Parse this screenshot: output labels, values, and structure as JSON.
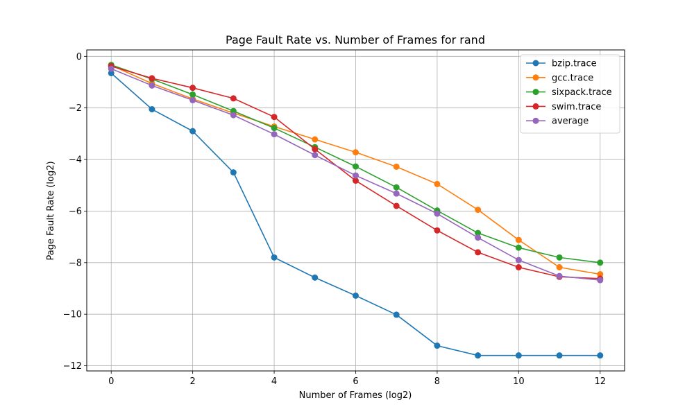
{
  "chart_data": {
    "type": "line",
    "title": "Page Fault Rate vs. Number of Frames for rand",
    "xlabel": "Number of Frames (log2)",
    "ylabel": "Page Fault Rate (log2)",
    "xlim": [
      -0.6,
      12.6
    ],
    "ylim": [
      -12.2,
      0.25
    ],
    "xticks": [
      0,
      2,
      4,
      6,
      8,
      10,
      12
    ],
    "yticks": [
      0,
      -2,
      -4,
      -6,
      -8,
      -10,
      -12
    ],
    "xtick_labels": [
      "0",
      "2",
      "4",
      "6",
      "8",
      "10",
      "12"
    ],
    "ytick_labels": [
      "0",
      "−2",
      "−4",
      "−6",
      "−8",
      "−10",
      "−12"
    ],
    "grid": true,
    "legend_position": "top-right",
    "x": [
      0,
      1,
      2,
      3,
      4,
      5,
      6,
      7,
      8,
      9,
      10,
      11,
      12
    ],
    "series": [
      {
        "name": "bzip.trace",
        "color": "#1f77b4",
        "values": [
          -0.65,
          -2.05,
          -2.9,
          -4.5,
          -7.8,
          -8.58,
          -9.28,
          -10.02,
          -11.22,
          -11.6,
          -11.6,
          -11.6,
          -11.6
        ]
      },
      {
        "name": "gcc.trace",
        "color": "#ff7f0e",
        "values": [
          -0.35,
          -1.05,
          -1.65,
          -2.2,
          -2.72,
          -3.22,
          -3.72,
          -4.28,
          -4.95,
          -5.95,
          -7.12,
          -8.18,
          -8.45
        ]
      },
      {
        "name": "sixpack.trace",
        "color": "#2ca02c",
        "values": [
          -0.33,
          -0.88,
          -1.48,
          -2.12,
          -2.78,
          -3.52,
          -4.27,
          -5.08,
          -5.98,
          -6.85,
          -7.42,
          -7.8,
          -8.0
        ]
      },
      {
        "name": "swim.trace",
        "color": "#d62728",
        "values": [
          -0.38,
          -0.85,
          -1.22,
          -1.63,
          -2.35,
          -3.6,
          -4.82,
          -5.8,
          -6.75,
          -7.6,
          -8.18,
          -8.55,
          -8.62
        ]
      },
      {
        "name": "average",
        "color": "#9467bd",
        "values": [
          -0.48,
          -1.13,
          -1.7,
          -2.28,
          -3.02,
          -3.83,
          -4.62,
          -5.32,
          -6.1,
          -7.03,
          -7.9,
          -8.52,
          -8.68
        ]
      }
    ]
  }
}
